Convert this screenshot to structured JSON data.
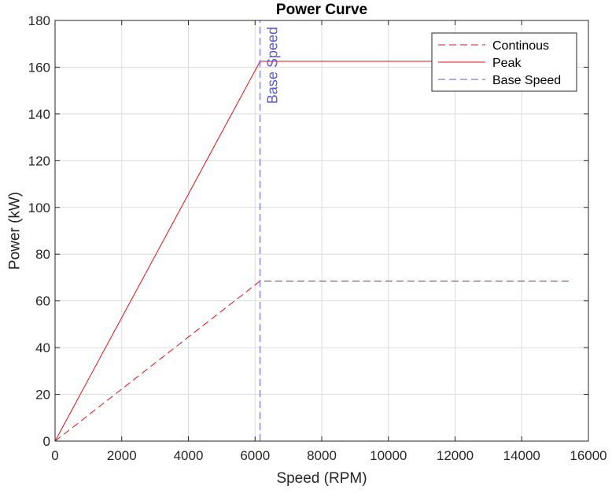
{
  "chart_data": {
    "type": "line",
    "title": "Power Curve",
    "xlabel": "Speed (RPM)",
    "ylabel": "Power (kW)",
    "xlim": [
      0,
      16000
    ],
    "ylim": [
      0,
      180
    ],
    "xticks": [
      0,
      2000,
      4000,
      6000,
      8000,
      10000,
      12000,
      14000,
      16000
    ],
    "yticks": [
      0,
      20,
      40,
      60,
      80,
      100,
      120,
      140,
      160,
      180
    ],
    "grid": true,
    "legend_position": "top-right",
    "series": [
      {
        "name": "Continous",
        "style": "dashed",
        "color": "#e01010",
        "points": [
          [
            0,
            0
          ],
          [
            6150,
            68.5
          ],
          [
            15500,
            68.5
          ]
        ]
      },
      {
        "name": "Peak",
        "style": "solid",
        "color": "#e01010",
        "points": [
          [
            0,
            0
          ],
          [
            6150,
            162.5
          ],
          [
            15500,
            162.5
          ]
        ]
      },
      {
        "name": "Base Speed",
        "style": "dashed",
        "color": "#5a5ad6",
        "points": [
          [
            6150,
            0
          ],
          [
            6150,
            180
          ]
        ]
      }
    ],
    "annotations": [
      {
        "text": "Base Speed",
        "x": 6150,
        "y": 180,
        "rotation": -90,
        "color": "#5a5ad6"
      }
    ]
  }
}
